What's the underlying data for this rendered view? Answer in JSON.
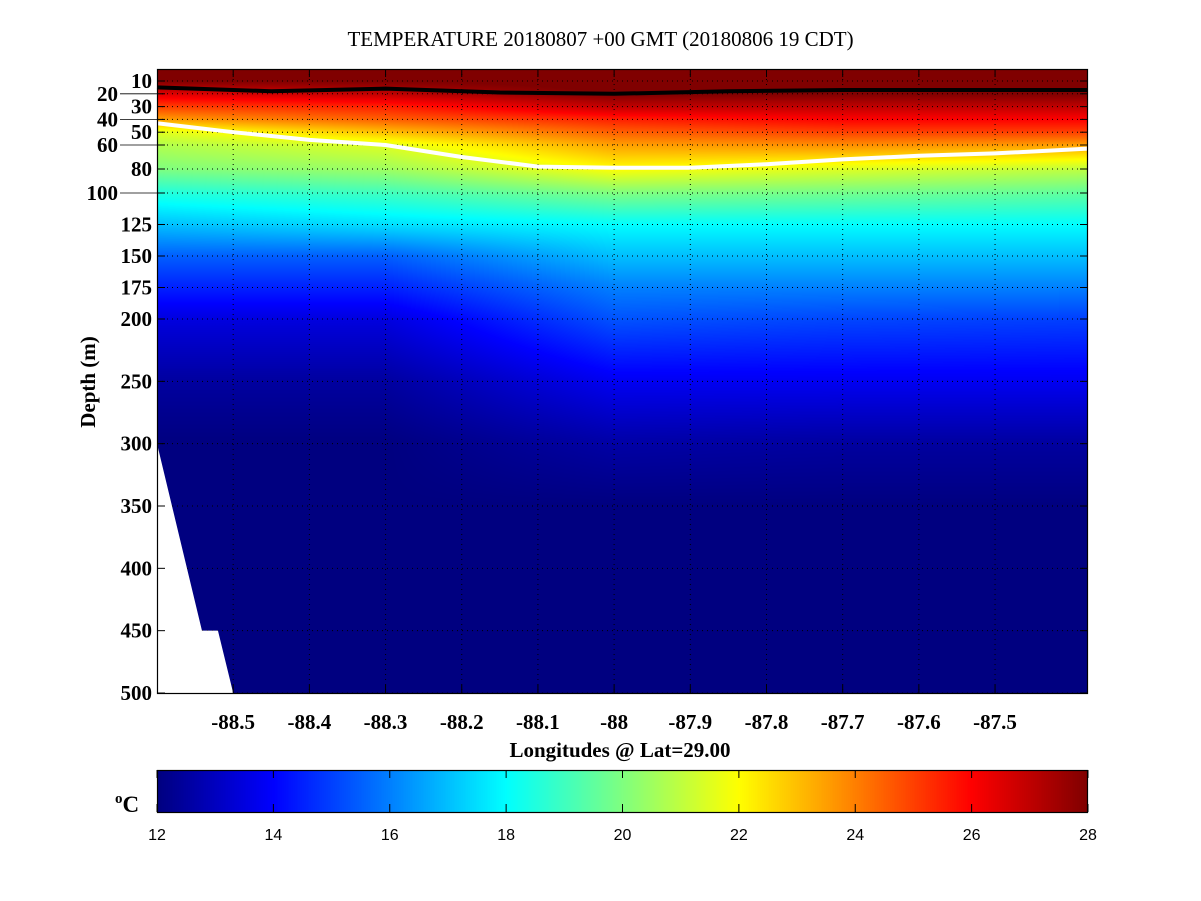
{
  "chart_data": {
    "type": "heatmap",
    "title": "TEMPERATURE 20180807 +00 GMT (20180806 19 CDT)",
    "xlabel": "Longitudes @ Lat=29.00",
    "ylabel": "Depth (m)",
    "xlim": [
      -88.6,
      -87.378
    ],
    "ylim": [
      0,
      500
    ],
    "y_reversed": true,
    "grid": true,
    "x_ticks": [
      "-88.5",
      "-88.4",
      "-88.3",
      "-88.2",
      "-88.1",
      "-88",
      "-87.9",
      "-87.8",
      "-87.7",
      "-87.6",
      "-87.5"
    ],
    "x_tick_values": [
      -88.5,
      -88.4,
      -88.3,
      -88.2,
      -88.1,
      -88.0,
      -87.9,
      -87.8,
      -87.7,
      -87.6,
      -87.5
    ],
    "y_ticks": [
      "10",
      "20",
      "30",
      "40",
      "50",
      "60",
      "80",
      "100",
      "125",
      "150",
      "175",
      "200",
      "250",
      "300",
      "350",
      "400",
      "450",
      "500"
    ],
    "y_tick_values": [
      10,
      20,
      30,
      40,
      50,
      60,
      80,
      100,
      125,
      150,
      175,
      200,
      250,
      300,
      350,
      400,
      450,
      500
    ],
    "grid_lons": [
      -88.6,
      -88.3,
      -88.0,
      -87.7,
      -87.378
    ],
    "grid_depths": [
      0,
      10,
      20,
      30,
      40,
      50,
      60,
      80,
      100,
      125,
      150,
      175,
      200,
      250,
      300,
      350,
      400,
      450,
      500
    ],
    "temperature": [
      [
        28.5,
        28,
        26.5,
        25,
        23.5,
        21.5,
        20.8,
        20,
        18.5,
        17,
        15.5,
        14.5,
        13.5,
        12.5,
        12,
        12,
        12,
        12,
        12
      ],
      [
        28.5,
        28,
        27,
        25.5,
        24.5,
        23,
        21.5,
        20.5,
        19,
        17.5,
        15.5,
        14.5,
        13.5,
        12.5,
        12,
        12,
        12,
        12,
        12
      ],
      [
        28.5,
        28.3,
        28,
        27,
        25.5,
        24.5,
        23.5,
        22,
        20,
        18,
        17,
        16,
        15.3,
        13.8,
        12.6,
        12,
        12,
        12,
        12
      ],
      [
        28.5,
        28.3,
        28,
        27,
        26,
        25,
        23.8,
        21.5,
        19.8,
        18,
        17,
        16,
        15.1,
        13.8,
        12.5,
        12,
        12,
        12,
        12
      ],
      [
        28.5,
        28.3,
        28,
        27,
        26,
        25,
        23.5,
        21,
        19.5,
        18,
        17,
        16,
        15,
        13.8,
        12.5,
        12,
        12,
        12,
        12
      ]
    ],
    "contours": [
      {
        "color": "#000000",
        "lons": [
          -88.6,
          -88.45,
          -88.3,
          -88.15,
          -88.0,
          -87.85,
          -87.7,
          -87.55,
          -87.378
        ],
        "depths": [
          15,
          18,
          16,
          19,
          20,
          18,
          17,
          17,
          17
        ]
      },
      {
        "color": "#ffffff",
        "lons": [
          -88.6,
          -88.5,
          -88.4,
          -88.3,
          -88.2,
          -88.1,
          -88.0,
          -87.9,
          -87.8,
          -87.7,
          -87.6,
          -87.5,
          -87.378
        ],
        "depths": [
          43,
          50,
          56,
          60,
          70,
          78,
          79,
          79,
          76,
          72,
          69,
          67,
          63
        ]
      }
    ],
    "bathymetry_mask": {
      "lons": [
        -88.6,
        -88.541,
        -88.52,
        -88.5,
        -88.6
      ],
      "depths": [
        300,
        450,
        450,
        500,
        500
      ],
      "color": "#ffffff"
    },
    "colorbar": {
      "label": "oC",
      "label_base": "o",
      "label_unit": "C",
      "colormap": "jet",
      "range": [
        12,
        28
      ],
      "ticks": [
        "12",
        "14",
        "16",
        "18",
        "20",
        "22",
        "24",
        "26",
        "28"
      ],
      "tick_values": [
        12,
        14,
        16,
        18,
        20,
        22,
        24,
        26,
        28
      ]
    }
  }
}
